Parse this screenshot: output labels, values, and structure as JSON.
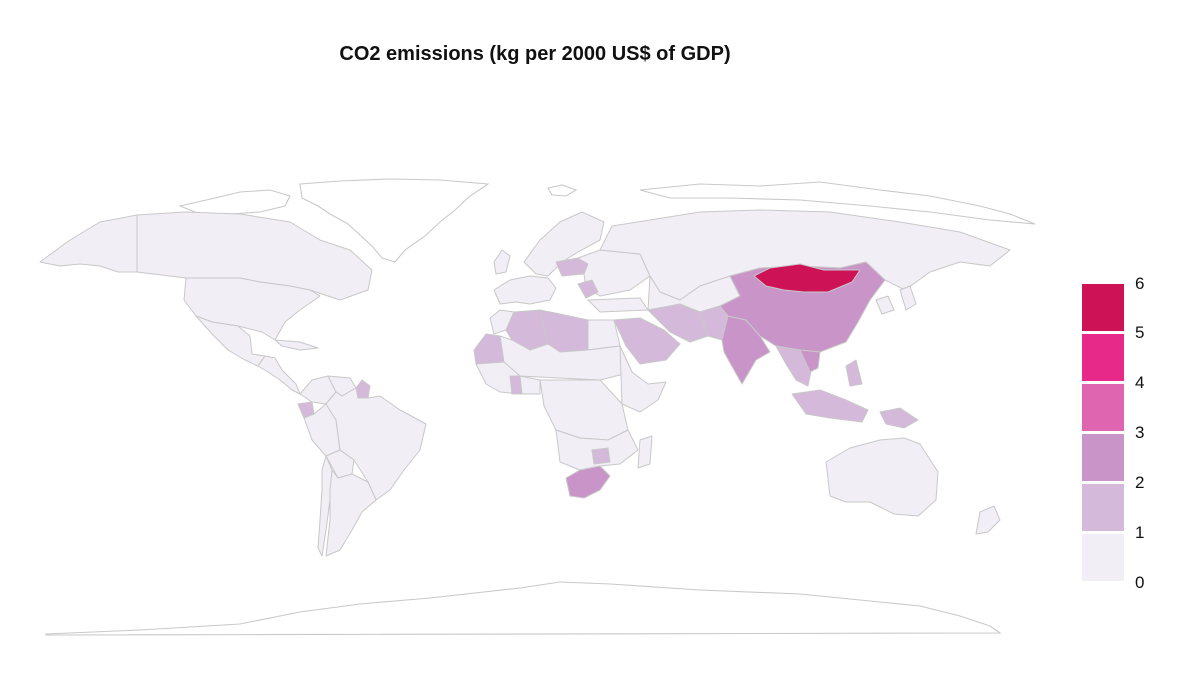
{
  "title": "CO2 emissions (kg per 2000 US$ of GDP)",
  "legend": {
    "ticks": [
      "6",
      "5",
      "4",
      "3",
      "2",
      "1",
      "0"
    ],
    "bins": [
      {
        "range": [
          5,
          6
        ],
        "color": "#ce1256"
      },
      {
        "range": [
          4,
          5
        ],
        "color": "#e7298a"
      },
      {
        "range": [
          3,
          4
        ],
        "color": "#df65b0"
      },
      {
        "range": [
          2,
          3
        ],
        "color": "#c994c7"
      },
      {
        "range": [
          1,
          2
        ],
        "color": "#d4b9da"
      },
      {
        "range": [
          0,
          1
        ],
        "color": "#f1eef6"
      }
    ]
  },
  "map_data": {
    "type": "choropleth",
    "projection": "equirectangular",
    "boundary_color": "#c8c8c8",
    "no_data_color": "#ffffff",
    "regions": [
      {
        "name": "Mongolia",
        "bin": "5-6"
      },
      {
        "name": "China",
        "bin": "2-3"
      },
      {
        "name": "India",
        "bin": "2-3"
      },
      {
        "name": "South Africa",
        "bin": "2-3"
      },
      {
        "name": "Vietnam",
        "bin": "2-3"
      },
      {
        "name": "Papua New Guinea",
        "bin": "1-2"
      },
      {
        "name": "Saudi Arabia",
        "bin": "1-2"
      },
      {
        "name": "Iran",
        "bin": "1-2"
      },
      {
        "name": "Algeria",
        "bin": "1-2"
      },
      {
        "name": "Libya",
        "bin": "1-2"
      },
      {
        "name": "Poland",
        "bin": "1-2"
      },
      {
        "name": "Malaysia",
        "bin": "1-2"
      },
      {
        "name": "Thailand",
        "bin": "1-2"
      },
      {
        "name": "Philippines",
        "bin": "1-2"
      },
      {
        "name": "Ecuador",
        "bin": "1-2"
      },
      {
        "name": "Guyana",
        "bin": "1-2"
      },
      {
        "name": "Zimbabwe",
        "bin": "1-2"
      },
      {
        "name": "Mauritania",
        "bin": "1-2"
      },
      {
        "name": "Ghana",
        "bin": "1-2"
      },
      {
        "name": "United States",
        "bin": "0-1"
      },
      {
        "name": "Canada",
        "bin": "0-1"
      },
      {
        "name": "Mexico",
        "bin": "0-1"
      },
      {
        "name": "Brazil",
        "bin": "0-1"
      },
      {
        "name": "Russia",
        "bin": "0-1"
      },
      {
        "name": "Australia",
        "bin": "0-1"
      },
      {
        "name": "Greenland",
        "bin": "no data"
      },
      {
        "name": "Antarctica",
        "bin": "no data"
      }
    ]
  }
}
